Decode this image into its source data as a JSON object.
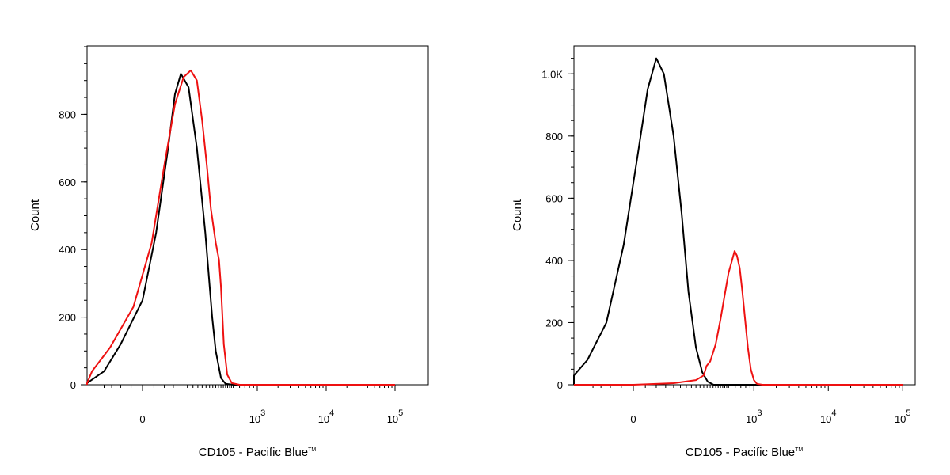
{
  "chart_data": [
    {
      "type": "line",
      "xlabel": "CD105 - Pacific Blue",
      "xlabel_tm": "TM",
      "ylabel": "Count",
      "x_scale": "biexponential",
      "x_ticks": [
        {
          "value": 0,
          "label": "0"
        },
        {
          "value": 1000,
          "label": "10",
          "exp": "3"
        },
        {
          "value": 10000,
          "label": "10",
          "exp": "4"
        },
        {
          "value": 100000,
          "label": "10",
          "exp": "5"
        }
      ],
      "y_ticks": [
        {
          "value": 0,
          "label": "0"
        },
        {
          "value": 200,
          "label": "200"
        },
        {
          "value": 400,
          "label": "400"
        },
        {
          "value": 600,
          "label": "600"
        },
        {
          "value": 800,
          "label": "800"
        }
      ],
      "ylim": [
        0,
        1000
      ],
      "series": [
        {
          "color": "#000000",
          "points": [
            [
              -400,
              0
            ],
            [
              -200,
              5
            ],
            [
              -100,
              40
            ],
            [
              -50,
              120
            ],
            [
              0,
              250
            ],
            [
              30,
              450
            ],
            [
              60,
              700
            ],
            [
              80,
              860
            ],
            [
              100,
              920
            ],
            [
              130,
              880
            ],
            [
              170,
              700
            ],
            [
              220,
              450
            ],
            [
              270,
              200
            ],
            [
              300,
              100
            ],
            [
              350,
              20
            ],
            [
              400,
              3
            ],
            [
              500,
              0
            ],
            [
              100000,
              0
            ]
          ]
        },
        {
          "color": "#ee1111",
          "points": [
            [
              -500,
              0
            ],
            [
              -300,
              5
            ],
            [
              -150,
              40
            ],
            [
              -80,
              110
            ],
            [
              -20,
              230
            ],
            [
              20,
              420
            ],
            [
              50,
              650
            ],
            [
              80,
              830
            ],
            [
              110,
              910
            ],
            [
              140,
              930
            ],
            [
              170,
              900
            ],
            [
              200,
              780
            ],
            [
              230,
              650
            ],
            [
              260,
              520
            ],
            [
              300,
              420
            ],
            [
              330,
              370
            ],
            [
              350,
              290
            ],
            [
              380,
              120
            ],
            [
              420,
              30
            ],
            [
              480,
              5
            ],
            [
              600,
              0
            ],
            [
              100000,
              0
            ]
          ]
        }
      ]
    },
    {
      "type": "line",
      "xlabel": "CD105 - Pacific Blue",
      "xlabel_tm": "TM",
      "ylabel": "Count",
      "x_scale": "biexponential",
      "x_ticks": [
        {
          "value": 0,
          "label": "0"
        },
        {
          "value": 1000,
          "label": "10",
          "exp": "3"
        },
        {
          "value": 10000,
          "label": "10",
          "exp": "4"
        },
        {
          "value": 100000,
          "label": "10",
          "exp": "5"
        }
      ],
      "y_ticks": [
        {
          "value": 0,
          "label": "0"
        },
        {
          "value": 200,
          "label": "200"
        },
        {
          "value": 400,
          "label": "400"
        },
        {
          "value": 600,
          "label": "600"
        },
        {
          "value": 800,
          "label": "800"
        },
        {
          "value": 1000,
          "label": "1.0K"
        }
      ],
      "ylim": [
        0,
        1100
      ],
      "series": [
        {
          "color": "#000000",
          "points": [
            [
              -500,
              0
            ],
            [
              -300,
              10
            ],
            [
              -200,
              30
            ],
            [
              -120,
              80
            ],
            [
              -60,
              200
            ],
            [
              -20,
              450
            ],
            [
              10,
              750
            ],
            [
              30,
              950
            ],
            [
              50,
              1050
            ],
            [
              70,
              1000
            ],
            [
              100,
              800
            ],
            [
              130,
              550
            ],
            [
              160,
              300
            ],
            [
              200,
              120
            ],
            [
              240,
              40
            ],
            [
              280,
              10
            ],
            [
              330,
              0
            ],
            [
              100000,
              0
            ]
          ]
        },
        {
          "color": "#ee1111",
          "points": [
            [
              -500,
              0
            ],
            [
              0,
              0
            ],
            [
              100,
              5
            ],
            [
              200,
              15
            ],
            [
              250,
              30
            ],
            [
              270,
              60
            ],
            [
              300,
              75
            ],
            [
              350,
              130
            ],
            [
              400,
              210
            ],
            [
              450,
              290
            ],
            [
              500,
              360
            ],
            [
              550,
              400
            ],
            [
              590,
              430
            ],
            [
              630,
              415
            ],
            [
              680,
              375
            ],
            [
              730,
              300
            ],
            [
              780,
              220
            ],
            [
              850,
              120
            ],
            [
              920,
              50
            ],
            [
              1000,
              15
            ],
            [
              1100,
              3
            ],
            [
              1300,
              0
            ],
            [
              100000,
              0
            ]
          ]
        }
      ]
    }
  ]
}
